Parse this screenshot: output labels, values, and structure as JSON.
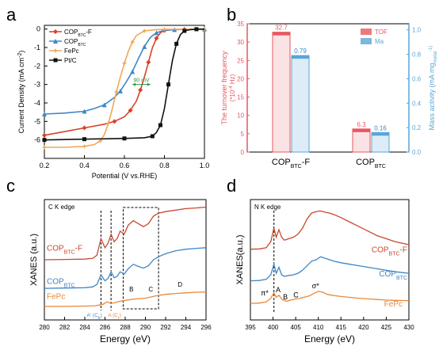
{
  "panels": {
    "a": {
      "letter": "a",
      "xlabel": "Potential (V vs.RHE)",
      "ylabel": "Current  Density (mA cm",
      "ylabel_sup": "-2",
      "ylabel_close": ")",
      "annotation": "90 mV",
      "legend": [
        {
          "base": "COP",
          "sub": "BTC",
          "suffix": "-F",
          "color": "#d9412c",
          "marker": "diamond"
        },
        {
          "base": "COP",
          "sub": "BTC",
          "suffix": "",
          "color": "#3f86c6",
          "marker": "triangle"
        },
        {
          "base": "FePc",
          "sub": "",
          "suffix": "",
          "color": "#f2a65a",
          "marker": "star"
        },
        {
          "base": "Pt/C",
          "sub": "",
          "suffix": "",
          "color": "#111111",
          "marker": "square"
        }
      ]
    },
    "b": {
      "letter": "b",
      "ylabel_left": "The turnover frequency",
      "ylabel_left_unit": "(*10",
      "ylabel_left_unit_sup": "-4",
      "ylabel_left_unit_tail": " Hz)",
      "ylabel_right": "Mass activity (mA mg",
      "ylabel_right_sub": "metal",
      "ylabel_right_tail": "-1)",
      "legend": [
        {
          "label": "TOF",
          "color": "#e8575f"
        },
        {
          "label": "Ma",
          "color": "#5aa6d6"
        }
      ]
    },
    "c": {
      "letter": "c",
      "inner_title": "C K edge",
      "xlabel": "Energy (eV)",
      "ylabel": "XANES (a.u.)",
      "labels": [
        {
          "base": "COP",
          "sub": "BTC",
          "suffix": "-F",
          "color": "#c8492f"
        },
        {
          "base": "COP",
          "sub": "BTC",
          "suffix": "",
          "color": "#3f86c6"
        },
        {
          "base": "FePc",
          "sub": "",
          "suffix": "",
          "color": "#e8883a"
        }
      ],
      "features": [
        "A' (C",
        "A (C",
        "B",
        "C",
        "D"
      ],
      "feature_subs": [
        "b",
        "r"
      ]
    },
    "d": {
      "letter": "d",
      "inner_title": "N K edge",
      "xlabel": "Energy (eV)",
      "ylabel": "XANES(a.u.)",
      "labels": [
        {
          "base": "COP",
          "sub": "BTC",
          "suffix": "-F",
          "color": "#c8492f"
        },
        {
          "base": "COP",
          "sub": "BTC",
          "suffix": "",
          "color": "#3f86c6"
        },
        {
          "base": "FePc",
          "sub": "",
          "suffix": "",
          "color": "#e8883a"
        }
      ],
      "features": [
        "π*",
        "A",
        "B",
        "C",
        "σ*"
      ]
    }
  },
  "chart_data": [
    {
      "type": "line",
      "panel": "a",
      "xlabel": "Potential (V vs.RHE)",
      "ylabel": "Current  Density (mA cm-2)",
      "xlim": [
        0.2,
        1.0
      ],
      "ylim": [
        -7,
        0.2
      ],
      "xticks": [
        "0.2",
        "0.4",
        "0.6",
        "0.8",
        "1.0"
      ],
      "yticks": [
        "0",
        "-1",
        "-2",
        "-3",
        "-4",
        "-5",
        "-6"
      ],
      "series": [
        {
          "name": "COPBTC-F",
          "color": "#d9412c",
          "x": [
            0.2,
            0.3,
            0.4,
            0.5,
            0.55,
            0.6,
            0.63,
            0.66,
            0.68,
            0.7,
            0.72,
            0.74,
            0.76,
            0.78,
            0.8,
            0.85,
            0.9,
            1.0
          ],
          "y": [
            -5.75,
            -5.55,
            -5.35,
            -5.15,
            -5.0,
            -4.75,
            -4.4,
            -3.9,
            -3.3,
            -2.6,
            -1.8,
            -1.0,
            -0.5,
            -0.2,
            -0.08,
            -0.03,
            -0.02,
            -0.01
          ]
        },
        {
          "name": "COPBTC",
          "color": "#3f86c6",
          "x": [
            0.2,
            0.3,
            0.4,
            0.45,
            0.5,
            0.55,
            0.58,
            0.61,
            0.64,
            0.67,
            0.7,
            0.73,
            0.76,
            0.8,
            0.85,
            0.9,
            1.0
          ],
          "y": [
            -4.6,
            -4.55,
            -4.45,
            -4.3,
            -4.1,
            -3.7,
            -3.35,
            -2.85,
            -2.3,
            -1.6,
            -0.95,
            -0.45,
            -0.2,
            -0.07,
            -0.03,
            -0.01,
            0.0
          ]
        },
        {
          "name": "FePc",
          "color": "#f2a65a",
          "x": [
            0.2,
            0.3,
            0.4,
            0.45,
            0.48,
            0.5,
            0.52,
            0.54,
            0.56,
            0.58,
            0.6,
            0.62,
            0.64,
            0.66,
            0.7,
            0.75,
            0.8,
            0.9,
            1.0
          ],
          "y": [
            -6.4,
            -6.4,
            -6.35,
            -6.25,
            -6.05,
            -5.7,
            -5.1,
            -4.3,
            -3.4,
            -2.6,
            -1.85,
            -1.2,
            -0.7,
            -0.35,
            -0.1,
            -0.04,
            -0.02,
            -0.01,
            0.0
          ]
        },
        {
          "name": "Pt/C",
          "color": "#111111",
          "x": [
            0.2,
            0.3,
            0.4,
            0.5,
            0.6,
            0.7,
            0.74,
            0.76,
            0.78,
            0.8,
            0.82,
            0.84,
            0.86,
            0.88,
            0.9,
            0.93,
            0.96,
            1.0
          ],
          "y": [
            -6.0,
            -5.98,
            -5.96,
            -5.94,
            -5.92,
            -5.88,
            -5.8,
            -5.6,
            -5.2,
            -4.3,
            -3.0,
            -1.7,
            -0.8,
            -0.3,
            -0.1,
            -0.03,
            -0.01,
            0.0
          ]
        }
      ]
    },
    {
      "type": "bar",
      "panel": "b",
      "categories": [
        "COPBTC-F",
        "COPBTC"
      ],
      "ylim_left": [
        0,
        35
      ],
      "ylim_right": [
        0,
        1.05
      ],
      "yticks_left": [
        "0",
        "5",
        "10",
        "15",
        "20",
        "25",
        "30",
        "35"
      ],
      "yticks_right": [
        "0.0",
        "0.2",
        "0.4",
        "0.6",
        "0.8",
        "1.0"
      ],
      "series": [
        {
          "name": "TOF",
          "axis": "left",
          "color": "#e8575f",
          "values": [
            32.7,
            6.3
          ],
          "labels": [
            "32.7",
            "6.3"
          ]
        },
        {
          "name": "Ma",
          "axis": "right",
          "color": "#5aa6d6",
          "values": [
            0.79,
            0.16
          ],
          "labels": [
            "0.79",
            "0.16"
          ]
        }
      ]
    },
    {
      "type": "line",
      "panel": "c",
      "xlabel": "Energy (eV)",
      "ylabel": "XANES (a.u.)",
      "xlim": [
        280,
        296
      ],
      "xticks": [
        "280",
        "282",
        "284",
        "286",
        "288",
        "290",
        "292",
        "294",
        "296"
      ],
      "ylim": [
        0,
        4
      ],
      "series": [
        {
          "name": "COPBTC-F",
          "color": "#c8492f",
          "x": [
            280,
            282,
            284,
            284.8,
            285.2,
            285.6,
            286.0,
            286.3,
            286.6,
            286.9,
            287.2,
            287.5,
            287.9,
            288.3,
            288.8,
            289.3,
            289.8,
            290.3,
            290.8,
            291.3,
            292,
            293,
            294,
            295,
            296
          ],
          "y": [
            2.0,
            2.01,
            2.02,
            2.05,
            2.15,
            2.7,
            2.4,
            2.55,
            2.85,
            2.6,
            2.7,
            2.95,
            2.85,
            3.15,
            3.3,
            3.2,
            3.1,
            3.2,
            3.45,
            3.55,
            3.6,
            3.65,
            3.7,
            3.72,
            3.75
          ]
        },
        {
          "name": "COPBTC",
          "color": "#3f86c6",
          "x": [
            280,
            282,
            284,
            284.8,
            285.2,
            285.6,
            286.0,
            286.3,
            286.6,
            286.9,
            287.2,
            287.5,
            287.9,
            288.3,
            288.8,
            289.3,
            289.8,
            290.3,
            290.8,
            291.3,
            292,
            293,
            294,
            295,
            296
          ],
          "y": [
            1.05,
            1.06,
            1.07,
            1.1,
            1.18,
            1.5,
            1.3,
            1.38,
            1.6,
            1.4,
            1.45,
            1.6,
            1.52,
            1.7,
            1.85,
            1.78,
            1.72,
            1.8,
            2.0,
            2.1,
            2.2,
            2.3,
            2.35,
            2.38,
            2.4
          ]
        },
        {
          "name": "FePc",
          "color": "#e8883a",
          "x": [
            280,
            282,
            284,
            285,
            285.8,
            286.2,
            286.6,
            287.0,
            287.5,
            288,
            289,
            290,
            291,
            292,
            293,
            294,
            295,
            296
          ],
          "y": [
            0.45,
            0.45,
            0.46,
            0.47,
            0.52,
            0.6,
            0.55,
            0.58,
            0.62,
            0.65,
            0.7,
            0.72,
            0.8,
            0.85,
            0.88,
            0.9,
            0.92,
            0.93
          ]
        }
      ]
    },
    {
      "type": "line",
      "panel": "d",
      "xlabel": "Energy (eV)",
      "ylabel": "XANES(a.u.)",
      "xlim": [
        395,
        430
      ],
      "xticks": [
        "395",
        "400",
        "405",
        "410",
        "415",
        "420",
        "425",
        "430"
      ],
      "ylim": [
        0,
        4
      ],
      "series": [
        {
          "name": "COPBTC-F",
          "color": "#c8492f",
          "x": [
            395,
            397,
            398.5,
            399.5,
            400.2,
            400.7,
            401.3,
            401.9,
            402.5,
            403.5,
            404.5,
            405.5,
            406.5,
            407.5,
            408.5,
            409.5,
            410.5,
            411.5,
            412.5,
            413.5,
            415,
            417,
            419,
            421,
            423,
            425,
            427,
            430
          ],
          "y": [
            2.35,
            2.36,
            2.4,
            2.6,
            3.05,
            2.75,
            3.0,
            2.75,
            2.65,
            2.7,
            2.75,
            2.85,
            3.05,
            3.35,
            3.55,
            3.6,
            3.62,
            3.58,
            3.55,
            3.5,
            3.4,
            3.25,
            3.1,
            2.95,
            2.8,
            2.7,
            2.6,
            2.5
          ]
        },
        {
          "name": "COPBTC",
          "color": "#3f86c6",
          "x": [
            395,
            397,
            398.5,
            399.5,
            400.2,
            400.7,
            401.3,
            401.9,
            402.5,
            403.5,
            404.5,
            405.5,
            406.5,
            407.5,
            408.5,
            409.5,
            410.5,
            411.5,
            412.5,
            413.5,
            415,
            417,
            419,
            421,
            423,
            425,
            427,
            430
          ],
          "y": [
            1.3,
            1.31,
            1.35,
            1.5,
            1.85,
            1.55,
            1.75,
            1.5,
            1.45,
            1.48,
            1.5,
            1.55,
            1.65,
            1.8,
            1.95,
            2.0,
            2.1,
            2.05,
            2.0,
            1.95,
            1.9,
            1.85,
            1.8,
            1.75,
            1.7,
            1.65,
            1.6,
            1.55
          ]
        },
        {
          "name": "FePc",
          "color": "#e8883a",
          "x": [
            395,
            397,
            398.5,
            399.5,
            400.2,
            400.7,
            401.3,
            402,
            403,
            404,
            405,
            406,
            407,
            408,
            409,
            410,
            411,
            412,
            413,
            415,
            417,
            419,
            421,
            423,
            425,
            427,
            430
          ],
          "y": [
            0.55,
            0.56,
            0.6,
            0.72,
            0.9,
            0.75,
            0.82,
            0.68,
            0.62,
            0.66,
            0.7,
            0.72,
            0.76,
            0.8,
            0.88,
            0.95,
            0.92,
            0.85,
            0.82,
            0.78,
            0.75,
            0.72,
            0.7,
            0.68,
            0.66,
            0.65,
            0.64
          ]
        }
      ]
    }
  ]
}
